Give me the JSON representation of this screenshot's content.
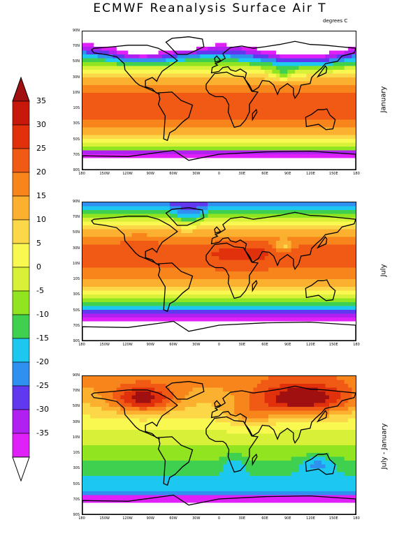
{
  "title": "ECMWF Reanalysis Surface Air T",
  "units": "degrees C",
  "panels": [
    {
      "label": "January",
      "mode": "jan"
    },
    {
      "label": "July",
      "mode": "jul"
    },
    {
      "label": "July - January",
      "mode": "diff"
    }
  ],
  "lat_ticks": [
    "90N",
    "70N",
    "50N",
    "30N",
    "10N",
    "10S",
    "30S",
    "50S",
    "70S",
    "90S"
  ],
  "lon_ticks": [
    "180",
    "150W",
    "120W",
    "90W",
    "60W",
    "30W",
    "0",
    "30E",
    "60E",
    "90E",
    "120E",
    "150E",
    "180"
  ],
  "colorbar": {
    "labels": [
      "35",
      "30",
      "25",
      "20",
      "15",
      "10",
      "5",
      "0",
      "-5",
      "-10",
      "-15",
      "-20",
      "-25",
      "-30",
      "-35"
    ],
    "top_color": "#a01010",
    "bottom_color": "#ffffff",
    "colors": [
      "#c8180c",
      "#e0300c",
      "#f05a14",
      "#f8841c",
      "#fcb030",
      "#fcd848",
      "#f8f850",
      "#d8f038",
      "#90e420",
      "#40d050",
      "#1cc8f0",
      "#3090f0",
      "#6038f0",
      "#b020f0",
      "#e020f8"
    ]
  }
}
